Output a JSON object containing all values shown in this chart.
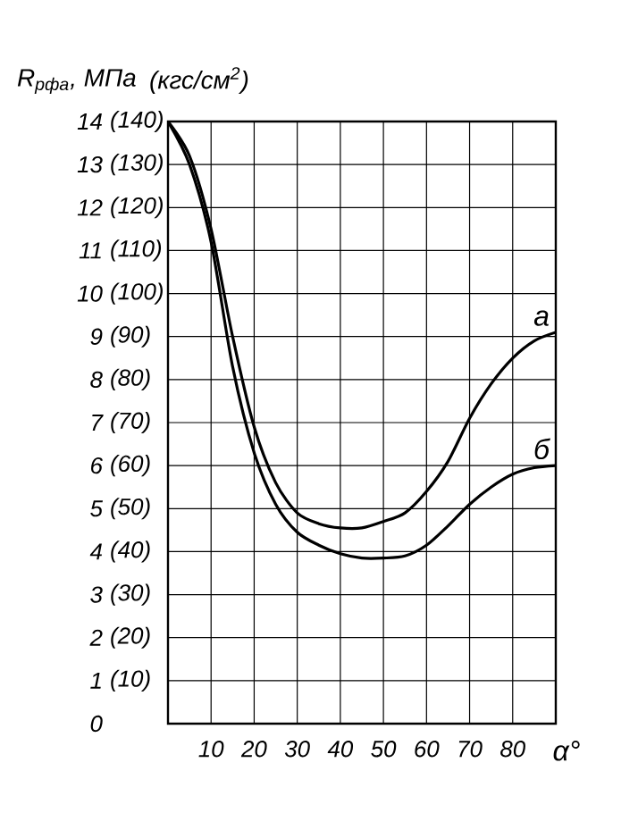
{
  "chart_data": {
    "type": "line",
    "ylabel": "R$_{рфа}$, МПа",
    "y2label": "(кгс/см$^{2}$)",
    "xlabel": "α°",
    "x": [
      0,
      5,
      10,
      15,
      20,
      25,
      30,
      35,
      40,
      45,
      50,
      55,
      60,
      65,
      70,
      75,
      80,
      85,
      90
    ],
    "series": [
      {
        "name": "а",
        "color": "#000000",
        "values": [
          14,
          13.2,
          11.5,
          9.0,
          6.9,
          5.6,
          4.9,
          4.65,
          4.55,
          4.55,
          4.7,
          4.9,
          5.4,
          6.1,
          7.1,
          7.9,
          8.5,
          8.9,
          9.1
        ]
      },
      {
        "name": "б",
        "color": "#000000",
        "values": [
          14,
          13.0,
          11.2,
          8.3,
          6.3,
          5.1,
          4.45,
          4.15,
          3.95,
          3.85,
          3.85,
          3.9,
          4.15,
          4.6,
          5.1,
          5.5,
          5.8,
          5.95,
          6.0
        ]
      }
    ],
    "xlim": [
      0,
      90
    ],
    "ylim": [
      0,
      14
    ],
    "xticks": [
      10,
      20,
      30,
      40,
      50,
      60,
      70,
      80
    ],
    "yticks": [
      0,
      1,
      2,
      3,
      4,
      5,
      6,
      7,
      8,
      9,
      10,
      11,
      12,
      13,
      14
    ],
    "y2lim": [
      0,
      140
    ],
    "y2ticks": [
      {
        "value": 10,
        "label": "(10)"
      },
      {
        "value": 20,
        "label": "(20)"
      },
      {
        "value": 30,
        "label": "(30)"
      },
      {
        "value": 40,
        "label": "(40)"
      },
      {
        "value": 50,
        "label": "(50)"
      },
      {
        "value": 60,
        "label": "(60)"
      },
      {
        "value": 70,
        "label": "(70)"
      },
      {
        "value": 80,
        "label": "(80)"
      },
      {
        "value": 90,
        "label": "(90)"
      },
      {
        "value": 100,
        "label": "(100)"
      },
      {
        "value": 110,
        "label": "(110)"
      },
      {
        "value": 120,
        "label": "(120)"
      },
      {
        "value": 130,
        "label": "(130)"
      },
      {
        "value": 140,
        "label": "(140)"
      }
    ],
    "grid": true,
    "marker": "none",
    "line_style": "solid"
  }
}
